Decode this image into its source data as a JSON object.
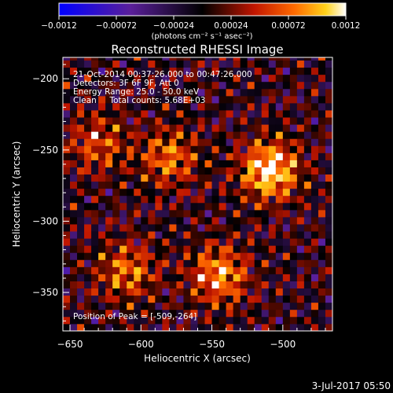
{
  "colorbar": {
    "ticks": [
      "-0.0012",
      "-0.00072",
      "-0.00024",
      "0.00024",
      "0.00072",
      "0.0012"
    ],
    "units": "(photons cm⁻² s⁻¹ asec⁻²)"
  },
  "header": {
    "title": "Reconstructed RHESSI Image",
    "info_lines": [
      "21-Oct-2014 00:37:26.000 to 00:47:26.000",
      "Detectors: 3F 6F 9F, Att 0",
      "Energy Range: 25.0 - 50.0 keV",
      "Clean     Total counts: 5.68E+03"
    ],
    "peak_text": "Position of Peak = [-509,-264]"
  },
  "footer": {
    "timestamp": "3-Jul-2017 05:50"
  },
  "chart_data": {
    "type": "heatmap",
    "title": "Reconstructed RHESSI Image",
    "xlabel": "Heliocentric X (arcsec)",
    "ylabel": "Heliocentric Y (arcsec)",
    "xlim": [
      -655,
      -465
    ],
    "ylim": [
      -377,
      -185
    ],
    "xticks": [
      -650,
      -600,
      -550,
      -500
    ],
    "yticks": [
      -200,
      -250,
      -300,
      -350
    ],
    "xtick_labels": [
      "−650",
      "−600",
      "−550",
      "−500"
    ],
    "ytick_labels": [
      "−200",
      "−250",
      "−300",
      "−350"
    ],
    "color_scale": {
      "min": -0.0012,
      "max": 0.0012,
      "colormap": "blue-purple-red-yellow-white"
    },
    "sources": [
      {
        "x": -509,
        "y": -264,
        "peak": 0.0012,
        "label": "peak"
      },
      {
        "x": -545,
        "y": -338,
        "peak": 0.0009
      },
      {
        "x": -610,
        "y": -335,
        "peak": 0.0007
      },
      {
        "x": -580,
        "y": -255,
        "peak": 0.0007
      },
      {
        "x": -630,
        "y": -245,
        "peak": 0.0006
      }
    ]
  },
  "colors": {
    "background": "#000000",
    "text": "#ffffff"
  }
}
